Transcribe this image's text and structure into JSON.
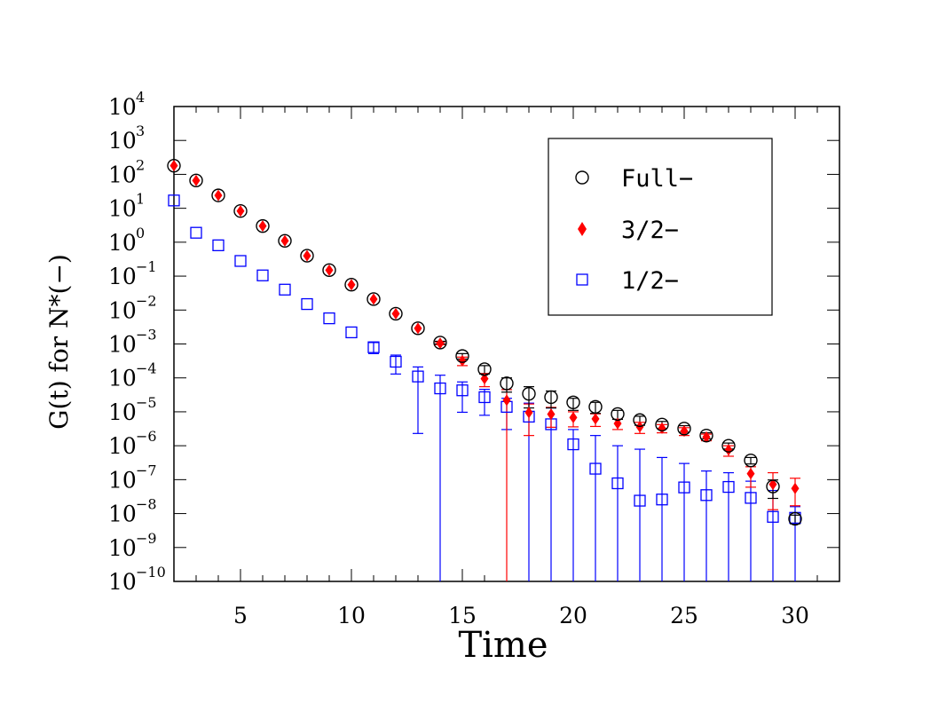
{
  "chart_data": {
    "type": "scatter",
    "xlabel": "Time",
    "ylabel": "G(t) for N*(−)",
    "xlim": [
      2,
      32
    ],
    "ylim": [
      1e-10,
      10000
    ],
    "yscale": "log",
    "x_ticks": [
      "5",
      "10",
      "15",
      "20",
      "25",
      "30"
    ],
    "y_tick_base": "10",
    "y_tick_exponents": [
      "−10",
      "−9",
      "−8",
      "−7",
      "−6",
      "−5",
      "−4",
      "−3",
      "−2",
      "−1",
      "0",
      "1",
      "2",
      "3",
      "4"
    ],
    "grid": false,
    "legend_position": "top-right",
    "series": [
      {
        "name": "Full−",
        "marker": "open-circle",
        "color": "#000000",
        "points": [
          {
            "x": 2,
            "y": 180.0,
            "lo": 180.0,
            "hi": 180.0
          },
          {
            "x": 3,
            "y": 66.0,
            "lo": 66.0,
            "hi": 66.0
          },
          {
            "x": 4,
            "y": 24.0,
            "lo": 24.0,
            "hi": 24.0
          },
          {
            "x": 5,
            "y": 8.3,
            "lo": 8.3,
            "hi": 8.3
          },
          {
            "x": 6,
            "y": 3.0,
            "lo": 3.0,
            "hi": 3.0
          },
          {
            "x": 7,
            "y": 1.1,
            "lo": 1.1,
            "hi": 1.1
          },
          {
            "x": 8,
            "y": 0.4,
            "lo": 0.4,
            "hi": 0.4
          },
          {
            "x": 9,
            "y": 0.15,
            "lo": 0.15,
            "hi": 0.15
          },
          {
            "x": 10,
            "y": 0.056,
            "lo": 0.056,
            "hi": 0.056
          },
          {
            "x": 11,
            "y": 0.021,
            "lo": 0.021,
            "hi": 0.021
          },
          {
            "x": 12,
            "y": 0.0078,
            "lo": 0.0078,
            "hi": 0.0078
          },
          {
            "x": 13,
            "y": 0.0029,
            "lo": 0.0029,
            "hi": 0.0029
          },
          {
            "x": 14,
            "y": 0.0011,
            "lo": 0.001,
            "hi": 0.0012
          },
          {
            "x": 15,
            "y": 0.00044,
            "lo": 0.00036,
            "hi": 0.00052
          },
          {
            "x": 16,
            "y": 0.00018,
            "lo": 0.00013,
            "hi": 0.00023
          },
          {
            "x": 17,
            "y": 6.9e-05,
            "lo": 3.8e-05,
            "hi": 0.0001
          },
          {
            "x": 18,
            "y": 3.4e-05,
            "lo": 1.3e-05,
            "hi": 5.5e-05
          },
          {
            "x": 19,
            "y": 2.7e-05,
            "lo": 1.3e-05,
            "hi": 4.1e-05
          },
          {
            "x": 20,
            "y": 1.9e-05,
            "lo": 1.1e-05,
            "hi": 2.5e-05
          },
          {
            "x": 21,
            "y": 1.4e-05,
            "lo": 9e-06,
            "hi": 1.9e-05
          },
          {
            "x": 22,
            "y": 8.6e-06,
            "lo": 6e-06,
            "hi": 1.1e-05
          },
          {
            "x": 23,
            "y": 5.7e-06,
            "lo": 4e-06,
            "hi": 7.4e-06
          },
          {
            "x": 24,
            "y": 4.2e-06,
            "lo": 3.2e-06,
            "hi": 5.2e-06
          },
          {
            "x": 25,
            "y": 3.2e-06,
            "lo": 2.5e-06,
            "hi": 3.9e-06
          },
          {
            "x": 26,
            "y": 2e-06,
            "lo": 1.6e-06,
            "hi": 2.4e-06
          },
          {
            "x": 27,
            "y": 1e-06,
            "lo": 8e-07,
            "hi": 1.2e-06
          },
          {
            "x": 28,
            "y": 3.7e-07,
            "lo": 2.9e-07,
            "hi": 4.5e-07
          },
          {
            "x": 29,
            "y": 6.3e-08,
            "lo": 2.8e-08,
            "hi": 9.8e-08
          },
          {
            "x": 30,
            "y": 7e-09,
            "lo": 5e-09,
            "hi": 9e-09
          }
        ]
      },
      {
        "name": "3/2−",
        "marker": "filled-diamond",
        "color": "#ff0000",
        "points": [
          {
            "x": 2,
            "y": 180.0,
            "lo": 180.0,
            "hi": 180.0
          },
          {
            "x": 3,
            "y": 66.0,
            "lo": 66.0,
            "hi": 66.0
          },
          {
            "x": 4,
            "y": 24.0,
            "lo": 24.0,
            "hi": 24.0
          },
          {
            "x": 5,
            "y": 8.3,
            "lo": 8.3,
            "hi": 8.3
          },
          {
            "x": 6,
            "y": 3.0,
            "lo": 3.0,
            "hi": 3.0
          },
          {
            "x": 7,
            "y": 1.1,
            "lo": 1.1,
            "hi": 1.1
          },
          {
            "x": 8,
            "y": 0.4,
            "lo": 0.4,
            "hi": 0.4
          },
          {
            "x": 9,
            "y": 0.15,
            "lo": 0.15,
            "hi": 0.15
          },
          {
            "x": 10,
            "y": 0.056,
            "lo": 0.056,
            "hi": 0.056
          },
          {
            "x": 11,
            "y": 0.021,
            "lo": 0.021,
            "hi": 0.021
          },
          {
            "x": 12,
            "y": 0.0078,
            "lo": 0.0078,
            "hi": 0.0078
          },
          {
            "x": 13,
            "y": 0.0029,
            "lo": 0.0029,
            "hi": 0.0029
          },
          {
            "x": 14,
            "y": 0.00105,
            "lo": 0.00095,
            "hi": 0.00115
          },
          {
            "x": 15,
            "y": 0.00032,
            "lo": 0.00023,
            "hi": 0.00041
          },
          {
            "x": 16,
            "y": 9.5e-05,
            "lo": 5.5e-05,
            "hi": 0.000135
          },
          {
            "x": 17,
            "y": 2.2e-05,
            "lo": 1e-10,
            "hi": 4.5e-05
          },
          {
            "x": 18,
            "y": 9.5e-06,
            "lo": 2e-06,
            "hi": 1.7e-05
          },
          {
            "x": 19,
            "y": 8.5e-06,
            "lo": 3.5e-06,
            "hi": 1.35e-05
          },
          {
            "x": 20,
            "y": 6.8e-06,
            "lo": 3.6e-06,
            "hi": 1e-05
          },
          {
            "x": 21,
            "y": 6.2e-06,
            "lo": 3.7e-06,
            "hi": 8.7e-06
          },
          {
            "x": 22,
            "y": 4.5e-06,
            "lo": 3e-06,
            "hi": 6e-06
          },
          {
            "x": 23,
            "y": 3.6e-06,
            "lo": 2.3e-06,
            "hi": 4.9e-06
          },
          {
            "x": 24,
            "y": 3.3e-06,
            "lo": 2.4e-06,
            "hi": 4.2e-06
          },
          {
            "x": 25,
            "y": 2.7e-06,
            "lo": 2e-06,
            "hi": 3.4e-06
          },
          {
            "x": 26,
            "y": 1.8e-06,
            "lo": 1.4e-06,
            "hi": 2.2e-06
          },
          {
            "x": 27,
            "y": 7.5e-07,
            "lo": 4.9e-07,
            "hi": 1e-06
          },
          {
            "x": 28,
            "y": 1.5e-07,
            "lo": 6e-08,
            "hi": 2.4e-07
          },
          {
            "x": 29,
            "y": 7.3e-08,
            "lo": 1.3e-08,
            "hi": 1.6e-07
          },
          {
            "x": 30,
            "y": 5.5e-08,
            "lo": 1.7e-08,
            "hi": 1.1e-07
          }
        ]
      },
      {
        "name": "1/2−",
        "marker": "open-square",
        "color": "#0000ff",
        "points": [
          {
            "x": 2,
            "y": 17.0,
            "lo": 17.0,
            "hi": 17.0
          },
          {
            "x": 3,
            "y": 1.9,
            "lo": 1.9,
            "hi": 1.9
          },
          {
            "x": 4,
            "y": 0.81,
            "lo": 0.81,
            "hi": 0.81
          },
          {
            "x": 5,
            "y": 0.28,
            "lo": 0.28,
            "hi": 0.28
          },
          {
            "x": 6,
            "y": 0.105,
            "lo": 0.105,
            "hi": 0.105
          },
          {
            "x": 7,
            "y": 0.04,
            "lo": 0.04,
            "hi": 0.04
          },
          {
            "x": 8,
            "y": 0.015,
            "lo": 0.015,
            "hi": 0.015
          },
          {
            "x": 9,
            "y": 0.0057,
            "lo": 0.0057,
            "hi": 0.0057
          },
          {
            "x": 10,
            "y": 0.0022,
            "lo": 0.0022,
            "hi": 0.0022
          },
          {
            "x": 11,
            "y": 0.0008,
            "lo": 0.00052,
            "hi": 0.0011
          },
          {
            "x": 12,
            "y": 0.0003,
            "lo": 0.00013,
            "hi": 0.00047
          },
          {
            "x": 13,
            "y": 0.00011,
            "lo": 2.3e-06,
            "hi": 0.00021
          },
          {
            "x": 14,
            "y": 4.9e-05,
            "lo": 1e-10,
            "hi": 0.00012
          },
          {
            "x": 15,
            "y": 4.3e-05,
            "lo": 9.7e-06,
            "hi": 7.6e-05
          },
          {
            "x": 16,
            "y": 2.7e-05,
            "lo": 7.9e-06,
            "hi": 4.6e-05
          },
          {
            "x": 17,
            "y": 1.4e-05,
            "lo": 3e-06,
            "hi": 2.5e-05
          },
          {
            "x": 18,
            "y": 7.2e-06,
            "lo": 1e-10,
            "hi": 1.8e-05
          },
          {
            "x": 19,
            "y": 4.3e-06,
            "lo": 1e-10,
            "hi": 1.3e-05
          },
          {
            "x": 20,
            "y": 1.1e-06,
            "lo": 1e-10,
            "hi": 3e-06
          },
          {
            "x": 21,
            "y": 2.1e-07,
            "lo": 1e-10,
            "hi": 2e-06
          },
          {
            "x": 22,
            "y": 7.8e-08,
            "lo": 1e-10,
            "hi": 1e-06
          },
          {
            "x": 23,
            "y": 2.4e-08,
            "lo": 1e-10,
            "hi": 7.9e-07
          },
          {
            "x": 24,
            "y": 2.6e-08,
            "lo": 1e-10,
            "hi": 4.5e-07
          },
          {
            "x": 25,
            "y": 5.9e-08,
            "lo": 1e-10,
            "hi": 3e-07
          },
          {
            "x": 26,
            "y": 3.5e-08,
            "lo": 1e-10,
            "hi": 1.8e-07
          },
          {
            "x": 27,
            "y": 6.1e-08,
            "lo": 1e-10,
            "hi": 1.6e-07
          },
          {
            "x": 28,
            "y": 2.9e-08,
            "lo": 1e-10,
            "hi": 9e-08
          },
          {
            "x": 29,
            "y": 8e-09,
            "lo": 1e-10,
            "hi": 4.8e-08
          },
          {
            "x": 30,
            "y": 7.5e-09,
            "lo": 1e-10,
            "hi": 1.6e-08
          }
        ]
      }
    ]
  }
}
